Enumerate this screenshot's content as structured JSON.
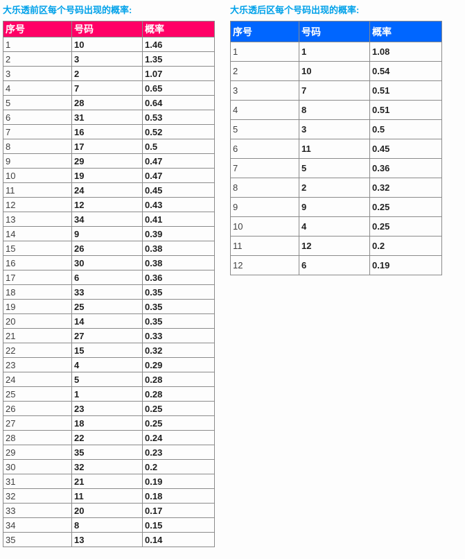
{
  "colors": {
    "title": "#00a1e9",
    "border": "#8a8a8a",
    "front_header_bg": "#ff0066",
    "back_header_bg": "#0066ff"
  },
  "front_zone": {
    "title": "大乐透前区每个号码出现的概率:",
    "headers": {
      "serial": "序号",
      "number": "号码",
      "probability": "概率"
    },
    "rows": [
      [
        "1",
        "10",
        "1.46"
      ],
      [
        "2",
        "3",
        "1.35"
      ],
      [
        "3",
        "2",
        "1.07"
      ],
      [
        "4",
        "7",
        "0.65"
      ],
      [
        "5",
        "28",
        "0.64"
      ],
      [
        "6",
        "31",
        "0.53"
      ],
      [
        "7",
        "16",
        "0.52"
      ],
      [
        "8",
        "17",
        "0.5"
      ],
      [
        "9",
        "29",
        "0.47"
      ],
      [
        "10",
        "19",
        "0.47"
      ],
      [
        "11",
        "24",
        "0.45"
      ],
      [
        "12",
        "12",
        "0.43"
      ],
      [
        "13",
        "34",
        "0.41"
      ],
      [
        "14",
        "9",
        "0.39"
      ],
      [
        "15",
        "26",
        "0.38"
      ],
      [
        "16",
        "30",
        "0.38"
      ],
      [
        "17",
        "6",
        "0.36"
      ],
      [
        "18",
        "33",
        "0.35"
      ],
      [
        "19",
        "25",
        "0.35"
      ],
      [
        "20",
        "14",
        "0.35"
      ],
      [
        "21",
        "27",
        "0.33"
      ],
      [
        "22",
        "15",
        "0.32"
      ],
      [
        "23",
        "4",
        "0.29"
      ],
      [
        "24",
        "5",
        "0.28"
      ],
      [
        "25",
        "1",
        "0.28"
      ],
      [
        "26",
        "23",
        "0.25"
      ],
      [
        "27",
        "18",
        "0.25"
      ],
      [
        "28",
        "22",
        "0.24"
      ],
      [
        "29",
        "35",
        "0.23"
      ],
      [
        "30",
        "32",
        "0.2"
      ],
      [
        "31",
        "21",
        "0.19"
      ],
      [
        "32",
        "11",
        "0.18"
      ],
      [
        "33",
        "20",
        "0.17"
      ],
      [
        "34",
        "8",
        "0.15"
      ],
      [
        "35",
        "13",
        "0.14"
      ]
    ]
  },
  "back_zone": {
    "title": "大乐透后区每个号码出现的概率:",
    "headers": {
      "serial": "序号",
      "number": "号码",
      "probability": "概率"
    },
    "rows": [
      [
        "1",
        "1",
        "1.08"
      ],
      [
        "2",
        "10",
        "0.54"
      ],
      [
        "3",
        "7",
        "0.51"
      ],
      [
        "4",
        "8",
        "0.51"
      ],
      [
        "5",
        "3",
        "0.5"
      ],
      [
        "6",
        "11",
        "0.45"
      ],
      [
        "7",
        "5",
        "0.36"
      ],
      [
        "8",
        "2",
        "0.32"
      ],
      [
        "9",
        "9",
        "0.25"
      ],
      [
        "10",
        "4",
        "0.25"
      ],
      [
        "11",
        "12",
        "0.2"
      ],
      [
        "12",
        "6",
        "0.19"
      ]
    ]
  }
}
